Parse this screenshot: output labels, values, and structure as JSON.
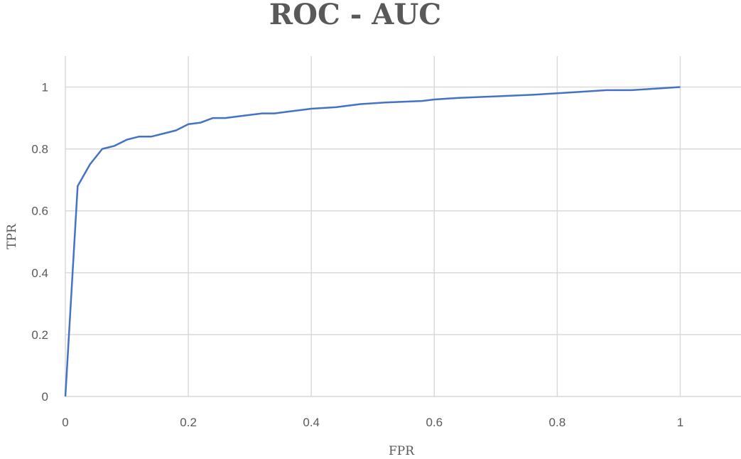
{
  "chart_data": {
    "type": "line",
    "title": "ROC - AUC",
    "xlabel": "FPR",
    "ylabel": "TPR",
    "xlim": [
      0,
      1.1
    ],
    "ylim": [
      0,
      1.1
    ],
    "grid": true,
    "xticks": [
      "0",
      "0.2",
      "0.4",
      "0.6",
      "0.8",
      "1"
    ],
    "yticks": [
      "0",
      "0.2",
      "0.4",
      "0.6",
      "0.8",
      "1"
    ],
    "series": [
      {
        "color": "#4472c4",
        "x": [
          0,
          0.02,
          0.04,
          0.06,
          0.08,
          0.1,
          0.12,
          0.14,
          0.16,
          0.18,
          0.2,
          0.22,
          0.24,
          0.26,
          0.28,
          0.3,
          0.32,
          0.34,
          0.36,
          0.4,
          0.44,
          0.48,
          0.52,
          0.58,
          0.6,
          0.64,
          0.7,
          0.76,
          0.8,
          0.84,
          0.88,
          0.92,
          0.96,
          1.0
        ],
        "y": [
          0,
          0.68,
          0.75,
          0.8,
          0.81,
          0.83,
          0.84,
          0.84,
          0.85,
          0.86,
          0.88,
          0.885,
          0.9,
          0.9,
          0.905,
          0.91,
          0.915,
          0.915,
          0.92,
          0.93,
          0.935,
          0.945,
          0.95,
          0.955,
          0.96,
          0.965,
          0.97,
          0.975,
          0.98,
          0.985,
          0.99,
          0.99,
          0.995,
          1.0
        ]
      }
    ]
  }
}
